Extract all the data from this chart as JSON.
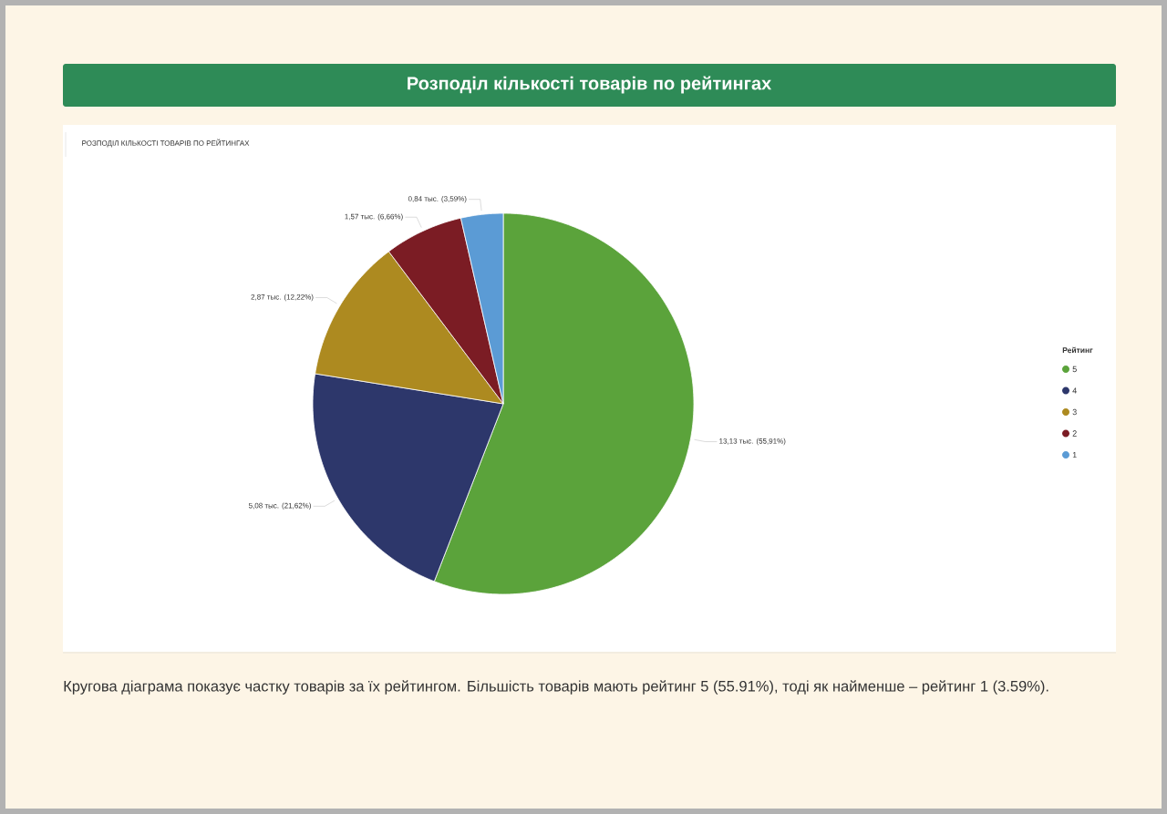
{
  "chart_data": {
    "type": "pie",
    "title": "Розподіл кількості товарів по рейтингах",
    "subtitle": "РОЗПОДІЛ КІЛЬКОСТІ ТОВАРІВ ПО РЕЙТИНГАХ",
    "legend_title": "Рейтинг",
    "legend": "right",
    "categories": [
      "5",
      "4",
      "3",
      "2",
      "1"
    ],
    "values": [
      13.13,
      5.08,
      2.87,
      1.57,
      0.84
    ],
    "value_labels": [
      "13,13 тыс. (55,91%)",
      "5,08 тыс. (21,62%)",
      "2,87 тыс. (12,22%)",
      "1,57 тыс. (6,66%)",
      "0,84 тыс. (3,59%)"
    ],
    "colors": [
      "#5ba33b",
      "#2d376b",
      "#ad8a20",
      "#7b1c24",
      "#5b9bd5"
    ],
    "annotations": [
      "Кругова діаграма показує частку товарів за їх рейтингом. Більшість товарів мають рейтинг 5 (55.91%), тоді як найменше – рейтинг 1 (3.59%)."
    ]
  }
}
